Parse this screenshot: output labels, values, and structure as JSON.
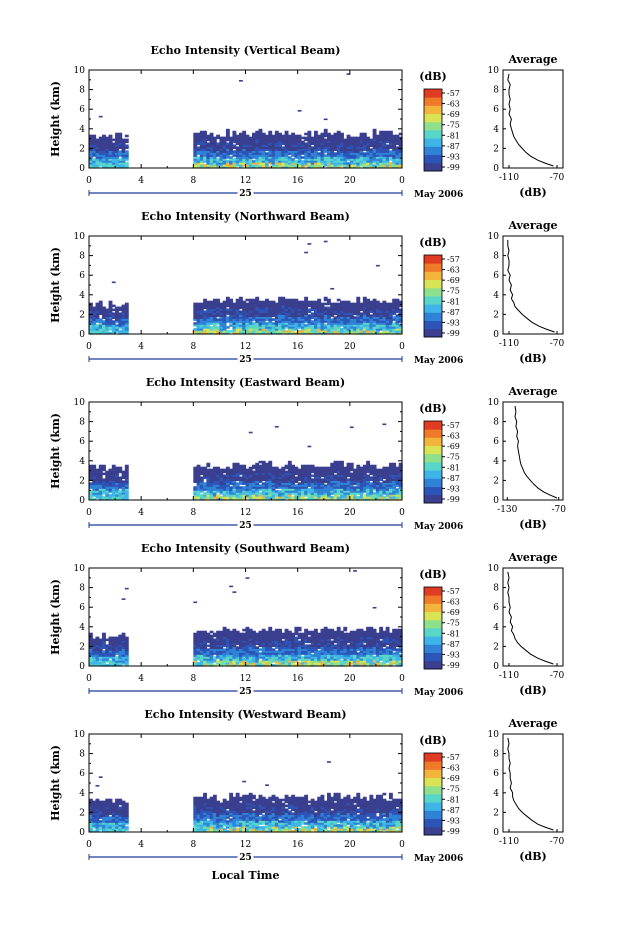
{
  "colors": {
    "palette": [
      "#3a3f8f",
      "#2d55b8",
      "#2f82d6",
      "#3eb4e8",
      "#59d6c8",
      "#8fe08a",
      "#d8e455",
      "#f2b43a",
      "#ee7a2a",
      "#e23b24"
    ],
    "frame": "#000000",
    "axis_bar": "#1a3a9a"
  },
  "footer": {
    "xlabel": "Local Time"
  },
  "chart_data": [
    {
      "type": "heatmap",
      "title": "Echo Intensity (Vertical Beam)",
      "ylabel": "Height (km)",
      "x_ticks": [
        "0",
        "4",
        "8",
        "12",
        "16",
        "20",
        "0"
      ],
      "y_ticks": [
        "0",
        "2",
        "4",
        "6",
        "8",
        "10"
      ],
      "xlim": [
        0,
        24
      ],
      "ylim": [
        0,
        10
      ],
      "date_day": "25",
      "date_month": "May 2006",
      "colorbar_unit": "(dB)",
      "colorbar_ticks": [
        "-57",
        "-63",
        "-69",
        "-75",
        "-81",
        "-87",
        "-93",
        "-99"
      ],
      "data_gap_hours": [
        3,
        8
      ],
      "echo_top_km": {
        "early": 3.2,
        "late": 3.5
      },
      "profile": {
        "title": "Average",
        "xlabel": "(dB)",
        "x_ticks": [
          "-110",
          "-70"
        ],
        "y_ticks": [
          "0",
          "2",
          "4",
          "6",
          "8",
          "10"
        ],
        "xlim": [
          -115,
          -65
        ],
        "ylim": [
          0,
          10
        ],
        "x": [
          -73,
          -80,
          -86,
          -92,
          -96,
          -99,
          -102,
          -104,
          -106,
          -107,
          -108,
          -109,
          -108,
          -110,
          -109,
          -110,
          -109,
          -110,
          -110,
          -109,
          -111,
          -110
        ],
        "y": [
          0.2,
          0.5,
          0.8,
          1.2,
          1.6,
          2.0,
          2.4,
          2.8,
          3.2,
          3.6,
          4.0,
          4.5,
          5.0,
          5.5,
          6.0,
          6.5,
          7.0,
          7.5,
          8.0,
          8.5,
          9.0,
          9.6
        ]
      }
    },
    {
      "type": "heatmap",
      "title": "Echo Intensity (Northward Beam)",
      "ylabel": "Height (km)",
      "x_ticks": [
        "0",
        "4",
        "8",
        "12",
        "16",
        "20",
        "0"
      ],
      "y_ticks": [
        "0",
        "2",
        "4",
        "6",
        "8",
        "10"
      ],
      "xlim": [
        0,
        24
      ],
      "ylim": [
        0,
        10
      ],
      "date_day": "25",
      "date_month": "May 2006",
      "colorbar_unit": "(dB)",
      "colorbar_ticks": [
        "-57",
        "-63",
        "-69",
        "-75",
        "-81",
        "-87",
        "-93",
        "-99"
      ],
      "data_gap_hours": [
        3,
        8
      ],
      "echo_top_km": {
        "early": 3.0,
        "late": 3.4
      },
      "profile": {
        "title": "Average",
        "xlabel": "(dB)",
        "x_ticks": [
          "-110",
          "-70"
        ],
        "y_ticks": [
          "0",
          "2",
          "4",
          "6",
          "8",
          "10"
        ],
        "xlim": [
          -115,
          -65
        ],
        "ylim": [
          0,
          10
        ],
        "x": [
          -72,
          -79,
          -85,
          -91,
          -95,
          -99,
          -102,
          -105,
          -106,
          -108,
          -107,
          -109,
          -108,
          -110,
          -109,
          -111,
          -110,
          -110,
          -111,
          -110,
          -111,
          -111
        ],
        "y": [
          0.2,
          0.5,
          0.8,
          1.2,
          1.6,
          2.0,
          2.4,
          2.8,
          3.2,
          3.6,
          4.0,
          4.5,
          5.0,
          5.5,
          6.0,
          6.5,
          7.0,
          7.5,
          8.0,
          8.5,
          9.0,
          9.6
        ]
      }
    },
    {
      "type": "heatmap",
      "title": "Echo Intensity (Eastward Beam)",
      "ylabel": "Height (km)",
      "x_ticks": [
        "0",
        "4",
        "8",
        "12",
        "16",
        "20",
        "0"
      ],
      "y_ticks": [
        "0",
        "2",
        "4",
        "6",
        "8",
        "10"
      ],
      "xlim": [
        0,
        24
      ],
      "ylim": [
        0,
        10
      ],
      "date_day": "25",
      "date_month": "May 2006",
      "colorbar_unit": "(dB)",
      "colorbar_ticks": [
        "-57",
        "-63",
        "-69",
        "-75",
        "-81",
        "-87",
        "-93",
        "-99"
      ],
      "data_gap_hours": [
        3,
        8
      ],
      "echo_top_km": {
        "early": 3.2,
        "late": 3.5
      },
      "profile": {
        "title": "Average",
        "xlabel": "(dB)",
        "x_ticks": [
          "-130",
          "-70"
        ],
        "y_ticks": [
          "0",
          "2",
          "4",
          "6",
          "8",
          "10"
        ],
        "xlim": [
          -135,
          -65
        ],
        "ylim": [
          0,
          10
        ],
        "x": [
          -72,
          -80,
          -87,
          -94,
          -99,
          -103,
          -107,
          -110,
          -112,
          -114,
          -115,
          -116,
          -117,
          -118,
          -117,
          -119,
          -118,
          -120,
          -119,
          -121,
          -120,
          -121
        ],
        "y": [
          0.2,
          0.5,
          0.8,
          1.2,
          1.6,
          2.0,
          2.4,
          2.8,
          3.2,
          3.6,
          4.0,
          4.5,
          5.0,
          5.5,
          6.0,
          6.5,
          7.0,
          7.5,
          8.0,
          8.5,
          9.0,
          9.6
        ]
      }
    },
    {
      "type": "heatmap",
      "title": "Echo Intensity (Southward Beam)",
      "ylabel": "Height (km)",
      "x_ticks": [
        "0",
        "4",
        "8",
        "12",
        "16",
        "20",
        "0"
      ],
      "y_ticks": [
        "0",
        "2",
        "4",
        "6",
        "8",
        "10"
      ],
      "xlim": [
        0,
        24
      ],
      "ylim": [
        0,
        10
      ],
      "date_day": "25",
      "date_month": "May 2006",
      "colorbar_unit": "(dB)",
      "colorbar_ticks": [
        "-57",
        "-63",
        "-69",
        "-75",
        "-81",
        "-87",
        "-93",
        "-99"
      ],
      "data_gap_hours": [
        3,
        8
      ],
      "echo_top_km": {
        "early": 3.0,
        "late": 3.6
      },
      "profile": {
        "title": "Average",
        "xlabel": "(dB)",
        "x_ticks": [
          "-110",
          "-70"
        ],
        "y_ticks": [
          "0",
          "2",
          "4",
          "6",
          "8",
          "10"
        ],
        "xlim": [
          -115,
          -65
        ],
        "ylim": [
          0,
          10
        ],
        "x": [
          -73,
          -80,
          -86,
          -92,
          -96,
          -100,
          -103,
          -105,
          -106,
          -108,
          -107,
          -109,
          -108,
          -110,
          -109,
          -110,
          -110,
          -111,
          -110,
          -111,
          -110,
          -111
        ],
        "y": [
          0.2,
          0.5,
          0.8,
          1.2,
          1.6,
          2.0,
          2.4,
          2.8,
          3.2,
          3.6,
          4.0,
          4.5,
          5.0,
          5.5,
          6.0,
          6.5,
          7.0,
          7.5,
          8.0,
          8.5,
          9.0,
          9.6
        ]
      }
    },
    {
      "type": "heatmap",
      "title": "Echo Intensity (Westward Beam)",
      "ylabel": "Height (km)",
      "x_ticks": [
        "0",
        "4",
        "8",
        "12",
        "16",
        "20",
        "0"
      ],
      "y_ticks": [
        "0",
        "2",
        "4",
        "6",
        "8",
        "10"
      ],
      "xlim": [
        0,
        24
      ],
      "ylim": [
        0,
        10
      ],
      "date_day": "25",
      "date_month": "May 2006",
      "colorbar_unit": "(dB)",
      "colorbar_ticks": [
        "-57",
        "-63",
        "-69",
        "-75",
        "-81",
        "-87",
        "-93",
        "-99"
      ],
      "data_gap_hours": [
        3,
        8
      ],
      "echo_top_km": {
        "early": 3.0,
        "late": 3.5
      },
      "profile": {
        "title": "Average",
        "xlabel": "(dB)",
        "x_ticks": [
          "-110",
          "-70"
        ],
        "y_ticks": [
          "0",
          "2",
          "4",
          "6",
          "8",
          "10"
        ],
        "xlim": [
          -115,
          -65
        ],
        "ylim": [
          0,
          10
        ],
        "x": [
          -73,
          -80,
          -86,
          -91,
          -95,
          -99,
          -102,
          -104,
          -106,
          -107,
          -107,
          -109,
          -108,
          -109,
          -109,
          -110,
          -109,
          -110,
          -110,
          -111,
          -110,
          -111
        ],
        "y": [
          0.2,
          0.5,
          0.8,
          1.2,
          1.6,
          2.0,
          2.4,
          2.8,
          3.2,
          3.6,
          4.0,
          4.5,
          5.0,
          5.5,
          6.0,
          6.5,
          7.0,
          7.5,
          8.0,
          8.5,
          9.0,
          9.6
        ]
      }
    }
  ]
}
